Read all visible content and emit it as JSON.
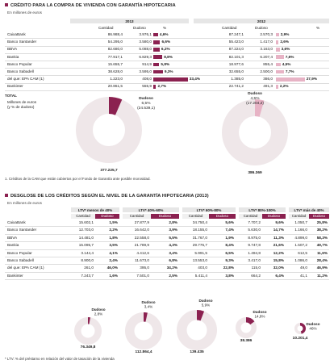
{
  "section1": {
    "title": "CRÉDITO PARA LA COMPRA DE VIVIENDA CON GARANTÍA HIPOTECARIA",
    "subtitle": "En millones de euros",
    "years": [
      "2013",
      "2012"
    ],
    "columns": [
      "Cantidad",
      "Dudoso",
      "%"
    ],
    "rows": [
      {
        "name": "CaixaBank",
        "c13": "86.988,4",
        "d13": "3.976,1",
        "p13": "4,6%",
        "v13": 4.6,
        "c12": "87.247,1",
        "d12": "2.570,3",
        "p12": "2,9%",
        "v12": 2.9
      },
      {
        "name": "Banco Santander",
        "c13": "54.295,0",
        "d13": "3.580,0",
        "p13": "6,6%",
        "v13": 6.6,
        "c12": "55.423,0",
        "d12": "1.417,0",
        "p12": "2,6%",
        "v12": 2.6
      },
      {
        "name": "BBVA",
        "c13": "82.680,0",
        "d13": "5.088,0",
        "p13": "6,2%",
        "v13": 6.2,
        "c12": "87.224,0",
        "d12": "3.163,0",
        "p12": "3,6%",
        "v12": 3.6
      },
      {
        "name": "Bankia",
        "c13": "77.917,1",
        "d13": "6.829,3",
        "p13": "8,8%",
        "v13": 8.8,
        "c12": "82.101,3",
        "d12": "6.207,4",
        "p12": "7,6%",
        "v12": 7.6
      },
      {
        "name": "Banco Popular",
        "c13": "15.655,7",
        "d13": "914,9",
        "p13": "5,8%",
        "v13": 5.8,
        "c12": "18.977,6",
        "d12": "855,4",
        "p12": "4,5%",
        "v12": 4.5
      },
      {
        "name": "Banco Sabadell",
        "c13": "38.628,0",
        "d13": "3.595,0",
        "p13": "9,3%",
        "v13": 9.3,
        "c12": "32.655,0",
        "d12": "2.500,0",
        "p12": "7,7%",
        "v12": 7.7
      },
      {
        "name": "del que: EPA CAM (1)",
        "c13": "1.223,0",
        "d13": "408,0",
        "p13": "33,4%",
        "v13": 33.4,
        "c12": "1.385,0",
        "d12": "386,0",
        "p12": "27,9%",
        "v12": 27.9
      },
      {
        "name": "Bankinter",
        "c13": "20.861,5",
        "d13": "555,9",
        "p13": "2,7%",
        "v13": 2.7,
        "c12": "22.741,2",
        "d12": "491,3",
        "p12": "2,2%",
        "v12": 2.2
      }
    ],
    "total_label": "TOTAL",
    "total_sub1": "Millones de euros",
    "total_sub2": "(y % de dudoso)",
    "donut2013": {
      "dudoso_label": "Dudoso",
      "pct": "6,5%",
      "amount": "(24.539,1)",
      "total": "377.225,7",
      "fraction": 0.065
    },
    "donut2012": {
      "dudoso_label": "Dudoso",
      "pct": "4,5%",
      "amount": "(17.204,2)",
      "total": "386.369",
      "fraction": 0.045
    },
    "footnote": "1. Créditos de la CAM que están cubiertos por el Fondo de Garantía ante posible morosidad."
  },
  "section2": {
    "title": "DESGLOSE DE LOS CRÉDITOS SEGÚN EL NIVEL DE LA GARANTÍA HIPOTECARIA (2013)",
    "subtitle": "En millones de euros",
    "groups": [
      "LTV* menos de 40%",
      "LTV* 40%-60%",
      "LTV* 60%-80%",
      "LTV* 80%-100%",
      "LTV* más de 40%"
    ],
    "subcols": [
      "Cantidad",
      "Dudoso"
    ],
    "rows": [
      {
        "name": "CaixaBank",
        "vals": [
          [
            "15.602,1",
            "1,5%"
          ],
          [
            "27.877,9",
            "2,8%"
          ],
          [
            "34.750,4",
            "5,6%"
          ],
          [
            "7.707,2",
            "9,6%"
          ],
          [
            "1.050,7",
            "25,8%"
          ]
        ]
      },
      {
        "name": "Banco Santander",
        "vals": [
          [
            "12.703,0",
            "2,2%"
          ],
          [
            "16.642,0",
            "3,9%"
          ],
          [
            "18.155,0",
            "7,4%"
          ],
          [
            "5.630,0",
            "14,7%"
          ],
          [
            "1.166,0",
            "38,2%"
          ]
        ]
      },
      {
        "name": "BBVA",
        "vals": [
          [
            "14.481,0",
            "1,8%"
          ],
          [
            "22.558,0",
            "5,5%"
          ],
          [
            "31.767,0",
            "1,9%"
          ],
          [
            "8.975,0",
            "11,3%"
          ],
          [
            "4.899,0",
            "58,3%"
          ]
        ]
      },
      {
        "name": "Bankia",
        "vals": [
          [
            "15.095,7",
            "3,5%"
          ],
          [
            "21.789,9",
            "4,3%"
          ],
          [
            "29.776,7",
            "8,4%"
          ],
          [
            "9.747,8",
            "21,6%"
          ],
          [
            "1.507,2",
            "49,7%"
          ]
        ]
      },
      {
        "name": "Banco Popular",
        "vals": [
          [
            "3.144,4",
            "4,1%"
          ],
          [
            "4.412,6",
            "3,4%"
          ],
          [
            "5.991,5",
            "6,5%"
          ],
          [
            "1.494,8",
            "12,2%"
          ],
          [
            "612,5",
            "11,6%"
          ]
        ]
      },
      {
        "name": "Banco Sabadell",
        "vals": [
          [
            "8.900,0",
            "2,4%"
          ],
          [
            "11.673,0",
            "6,8%"
          ],
          [
            "13.553,0",
            "9,3%"
          ],
          [
            "3.417,0",
            "15,8%"
          ],
          [
            "1.086,0",
            "28,4%"
          ]
        ]
      },
      {
        "name": "del que: EPA CAM (1)",
        "vals": [
          [
            "261,0",
            "46,0%"
          ],
          [
            "395,0",
            "34,2%"
          ],
          [
            "403,0",
            "22,8%"
          ],
          [
            "115,0",
            "32,0%"
          ],
          [
            "49,0",
            "46,9%"
          ]
        ]
      },
      {
        "name": "Bankinter",
        "vals": [
          [
            "7.243,7",
            "1,6%"
          ],
          [
            "7.501,0",
            "2,5%"
          ],
          [
            "5.411,4",
            "3,8%"
          ],
          [
            "664,2",
            "6,4%"
          ],
          [
            "41,1",
            "11,2%"
          ]
        ]
      }
    ],
    "donuts": [
      {
        "dudoso_label": "Dudoso",
        "pct": "2,8%",
        "total": "76.349,8",
        "fraction": 0.028
      },
      {
        "dudoso_label": "Dudoso",
        "pct": "3,4%",
        "total": "112.864,4",
        "fraction": 0.034
      },
      {
        "dudoso_label": "Dudoso",
        "pct": "5,9%",
        "total": "139.435",
        "fraction": 0.059
      },
      {
        "dudoso_label": "Dudoso",
        "pct": "14,8%",
        "total": "38.386",
        "fraction": 0.148
      },
      {
        "dudoso_label": "Dudoso",
        "pct": "46%",
        "total": "10.201,4",
        "fraction": 0.46
      }
    ],
    "footnote": "* LTV: % del préstamo en relación del valor de tasación de la vivienda"
  },
  "colors": {
    "accent": "#8b2150",
    "light": "#e7b3c5",
    "ring": "#efe7e9",
    "header": "#e6e6e6"
  },
  "chart_data": [
    {
      "type": "table",
      "title": "CRÉDITO PARA LA COMPRA DE VIVIENDA CON GARANTÍA HIPOTECARIA",
      "categories": [
        "CaixaBank",
        "Banco Santander",
        "BBVA",
        "Bankia",
        "Banco Popular",
        "Banco Sabadell",
        "del que: EPA CAM (1)",
        "Bankinter"
      ],
      "series": [
        {
          "name": "2013",
          "values": [
            4.6,
            6.6,
            6.2,
            8.8,
            5.8,
            9.3,
            33.4,
            2.7
          ]
        },
        {
          "name": "2012",
          "values": [
            2.9,
            2.6,
            3.6,
            7.6,
            4.5,
            7.7,
            27.9,
            2.2
          ]
        }
      ]
    },
    {
      "type": "pie",
      "categories": [
        "Dudoso",
        "Resto"
      ],
      "values": [
        24539.1,
        352686.6
      ],
      "total": 377225.7
    },
    {
      "type": "pie",
      "categories": [
        "Dudoso",
        "Resto"
      ],
      "values": [
        17204.2,
        369164.8
      ],
      "total": 386369
    },
    {
      "type": "pie",
      "categories": [
        "Dudoso",
        "Resto"
      ],
      "values": [
        2.8,
        97.2
      ],
      "total": 76349.8
    },
    {
      "type": "pie",
      "categories": [
        "Dudoso",
        "Resto"
      ],
      "values": [
        3.4,
        96.6
      ],
      "total": 112864.4
    },
    {
      "type": "pie",
      "categories": [
        "Dudoso",
        "Resto"
      ],
      "values": [
        5.9,
        94.1
      ],
      "total": 139435
    },
    {
      "type": "pie",
      "categories": [
        "Dudoso",
        "Resto"
      ],
      "values": [
        14.8,
        85.2
      ],
      "total": 38386
    },
    {
      "type": "pie",
      "categories": [
        "Dudoso",
        "Resto"
      ],
      "values": [
        46,
        54
      ],
      "total": 10201.4
    }
  ]
}
